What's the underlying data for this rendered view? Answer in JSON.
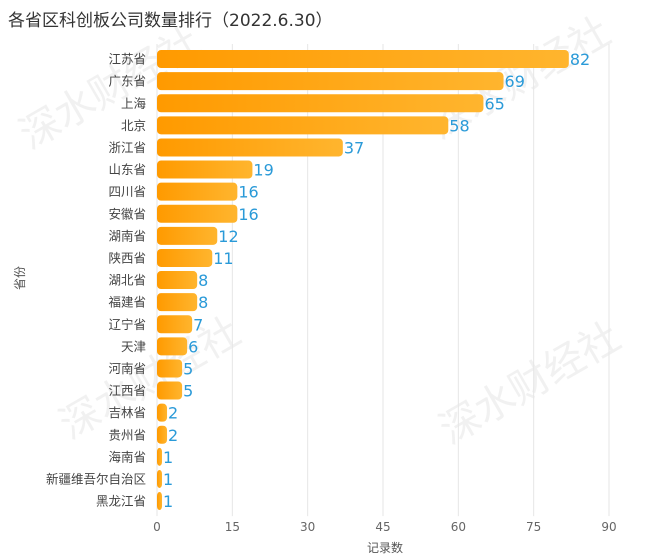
{
  "title": "各省区科创板公司数量排行（2022.6.30）",
  "watermark": "深水财经社",
  "colors": {
    "bar_start": "#ff9a00",
    "bar_end": "#ffb52e",
    "value_label": "#2a9ad8",
    "grid": "#e6e6e6"
  },
  "chart_data": {
    "type": "bar",
    "orientation": "horizontal",
    "title": "各省区科创板公司数量排行（2022.6.30）",
    "xlabel": "记录数",
    "ylabel": "省份",
    "xlim": [
      0,
      90
    ],
    "xticks": [
      0,
      15,
      30,
      45,
      60,
      75,
      90
    ],
    "grid": true,
    "categories": [
      "江苏省",
      "广东省",
      "上海",
      "北京",
      "浙江省",
      "山东省",
      "四川省",
      "安徽省",
      "湖南省",
      "陕西省",
      "湖北省",
      "福建省",
      "辽宁省",
      "天津",
      "河南省",
      "江西省",
      "吉林省",
      "贵州省",
      "海南省",
      "新疆维吾尔自治区",
      "黑龙江省"
    ],
    "values": [
      82,
      69,
      65,
      58,
      37,
      19,
      16,
      16,
      12,
      11,
      8,
      8,
      7,
      6,
      5,
      5,
      2,
      2,
      1,
      1,
      1
    ]
  }
}
